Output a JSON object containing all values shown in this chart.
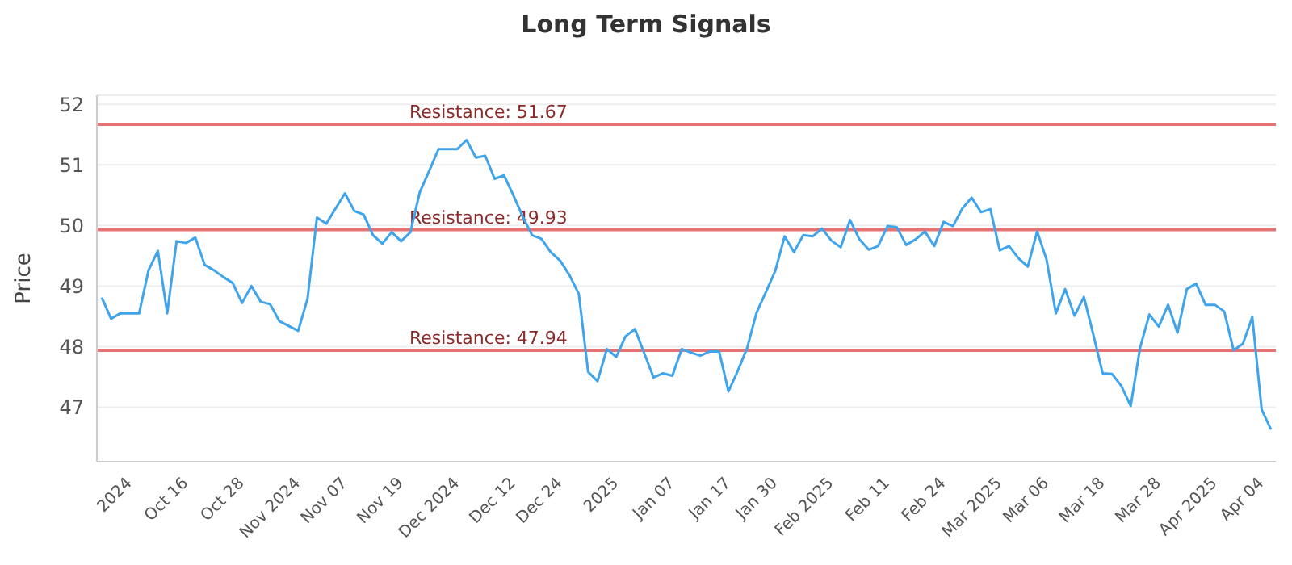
{
  "chart_data": {
    "type": "line",
    "title": "Long Term Signals",
    "ylabel": "Price",
    "categories": [
      null,
      null,
      null,
      "2024",
      null,
      null,
      null,
      null,
      null,
      "Oct 16",
      null,
      null,
      null,
      null,
      null,
      "Oct 28",
      null,
      null,
      null,
      null,
      null,
      "Nov 2024",
      null,
      null,
      null,
      null,
      "Nov 07",
      null,
      null,
      null,
      null,
      null,
      "Nov 19",
      null,
      null,
      null,
      null,
      null,
      "Dec 2024",
      null,
      null,
      null,
      null,
      null,
      "Dec 12",
      null,
      null,
      null,
      null,
      "Dec 24",
      null,
      null,
      null,
      null,
      null,
      "2025",
      null,
      null,
      null,
      null,
      null,
      "Jan 07",
      null,
      null,
      null,
      null,
      null,
      "Jan 17",
      null,
      null,
      null,
      null,
      "Jan 30",
      null,
      null,
      null,
      null,
      null,
      "Feb 2025",
      null,
      null,
      null,
      null,
      null,
      "Feb 11",
      null,
      null,
      null,
      null,
      null,
      "Feb 24",
      null,
      null,
      null,
      null,
      null,
      "Mar 2025",
      null,
      null,
      null,
      null,
      "Mar 06",
      null,
      null,
      null,
      null,
      null,
      "Mar 18",
      null,
      null,
      null,
      null,
      null,
      "Mar 28",
      null,
      null,
      null,
      null,
      null,
      "Apr 2025",
      null,
      null,
      null,
      null,
      "Apr 04",
      null
    ],
    "series": [
      {
        "color": "#3fa4ec",
        "values": [
          48.81,
          48.46,
          48.55,
          48.55,
          48.55,
          49.26,
          49.58,
          48.55,
          49.74,
          49.71,
          49.8,
          49.35,
          49.26,
          49.15,
          49.05,
          48.72,
          49.0,
          48.74,
          48.7,
          48.42,
          48.34,
          48.26,
          48.79,
          50.13,
          50.03,
          50.28,
          50.53,
          50.24,
          50.18,
          49.84,
          49.7,
          49.89,
          49.74,
          49.89,
          50.55,
          50.9,
          51.26,
          51.26,
          51.26,
          51.41,
          51.12,
          51.15,
          50.77,
          50.83,
          50.5,
          50.15,
          49.84,
          49.78,
          49.56,
          49.42,
          49.18,
          48.87,
          47.58,
          47.43,
          47.96,
          47.83,
          48.17,
          48.29,
          47.89,
          47.49,
          47.56,
          47.52,
          47.96,
          47.9,
          47.85,
          47.92,
          47.92,
          47.26,
          47.6,
          47.98,
          48.56,
          48.9,
          49.25,
          49.82,
          49.56,
          49.84,
          49.82,
          49.95,
          49.75,
          49.64,
          50.09,
          49.77,
          49.6,
          49.66,
          49.99,
          49.97,
          49.68,
          49.77,
          49.9,
          49.66,
          50.06,
          49.99,
          50.28,
          50.46,
          50.22,
          50.27,
          49.59,
          49.66,
          49.46,
          49.32,
          49.9,
          49.44,
          48.55,
          48.95,
          48.51,
          48.82,
          48.2,
          47.56,
          47.55,
          47.35,
          47.02,
          47.98,
          48.53,
          48.33,
          48.69,
          48.23,
          48.95,
          49.04,
          48.69,
          48.69,
          48.58,
          47.94,
          48.05,
          48.49,
          46.96,
          46.63
        ]
      }
    ],
    "ylim": [
      46.1,
      52.15
    ],
    "yticks": [
      47,
      48,
      49,
      50,
      51,
      52
    ],
    "grid": "y",
    "marker": "none",
    "line_style": "solid",
    "ref_lines": [
      {
        "axis": "y",
        "value": 51.67,
        "label": "Resistance: 51.67",
        "color": "#e57373"
      },
      {
        "axis": "y",
        "value": 49.93,
        "label": "Resistance: 49.93",
        "color": "#e57373"
      },
      {
        "axis": "y",
        "value": 47.94,
        "label": "Resistance: 47.94",
        "color": "#e57373"
      }
    ]
  }
}
